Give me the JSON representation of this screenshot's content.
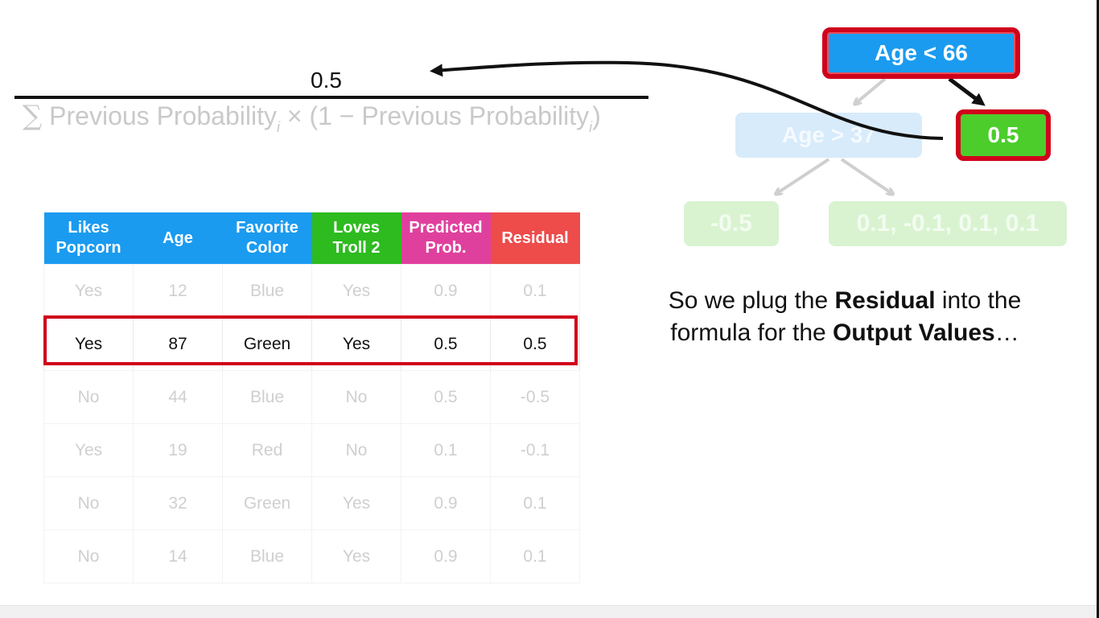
{
  "formula": {
    "numerator": "0.5",
    "sigma": "∑",
    "term_a": "Previous Probability",
    "subscript": "i",
    "times": "×",
    "term_b_open": "(1 − Previous Probability",
    "term_b_close": ")"
  },
  "tree": {
    "root": "Age < 66",
    "mid": "Age > 37",
    "leaf_highlight": "0.5",
    "leaf_left": "-0.5",
    "leaf_right": "0.1, -0.1, 0.1, 0.1"
  },
  "table": {
    "headers": [
      [
        "Likes",
        "Popcorn"
      ],
      [
        "Age"
      ],
      [
        "Favorite",
        "Color"
      ],
      [
        "Loves",
        "Troll 2"
      ],
      [
        "Predicted",
        "Prob."
      ],
      [
        "Residual"
      ]
    ],
    "rows": [
      [
        "Yes",
        "12",
        "Blue",
        "Yes",
        "0.9",
        "0.1"
      ],
      [
        "Yes",
        "87",
        "Green",
        "Yes",
        "0.5",
        "0.5"
      ],
      [
        "No",
        "44",
        "Blue",
        "No",
        "0.5",
        "-0.5"
      ],
      [
        "Yes",
        "19",
        "Red",
        "No",
        "0.1",
        "-0.1"
      ],
      [
        "No",
        "32",
        "Green",
        "Yes",
        "0.9",
        "0.1"
      ],
      [
        "No",
        "14",
        "Blue",
        "Yes",
        "0.9",
        "0.1"
      ]
    ],
    "highlighted_row": 1
  },
  "caption": {
    "part1": "So we plug the ",
    "bold1": "Residual",
    "part2": " into the formula for the ",
    "bold2": "Output Values",
    "part3": "…"
  },
  "colors": {
    "blue": "#1a9bf0",
    "green": "#2dbb1f",
    "pink": "#e0409d",
    "red": "#ee4b4b",
    "highlight_red": "#d0021b"
  }
}
